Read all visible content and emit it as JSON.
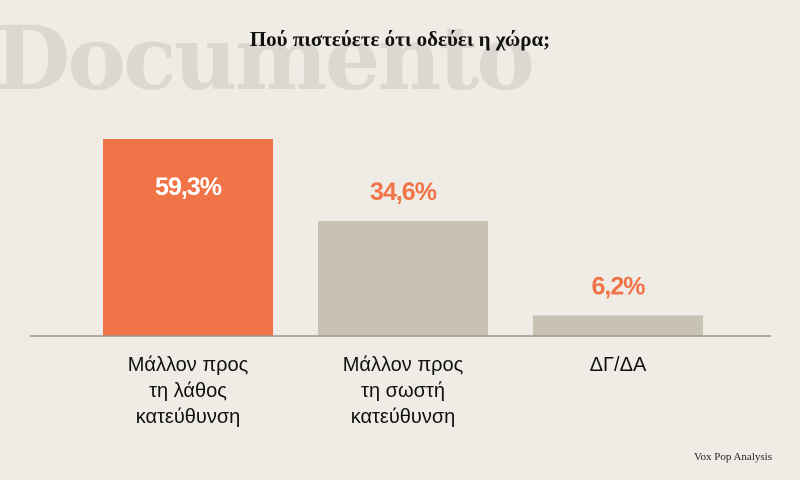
{
  "watermark": "Documento",
  "source": "Vox Pop Analysis",
  "colors": {
    "highlight": "#f07448",
    "neutral": "#c8c2b5",
    "axis": "#9b958b",
    "label_on_bar": "#ffffff",
    "label_above": "#f07448"
  },
  "chart_data": {
    "type": "bar",
    "title": "Πού πιστεύετε ότι οδεύει η χώρα;",
    "categories": [
      [
        "Μάλλον προς",
        "τη λάθος",
        "κατεύθυνση"
      ],
      [
        "Μάλλον προς",
        "τη σωστή",
        "κατεύθυνση"
      ],
      [
        "ΔΓ/ΔΑ"
      ]
    ],
    "values": [
      59.3,
      34.6,
      6.2
    ],
    "value_labels": [
      "59,3%",
      "34,6%",
      "6,2%"
    ],
    "highlight_index": 0,
    "ylim": [
      0,
      59.3
    ],
    "grid": false,
    "legend": "none"
  }
}
